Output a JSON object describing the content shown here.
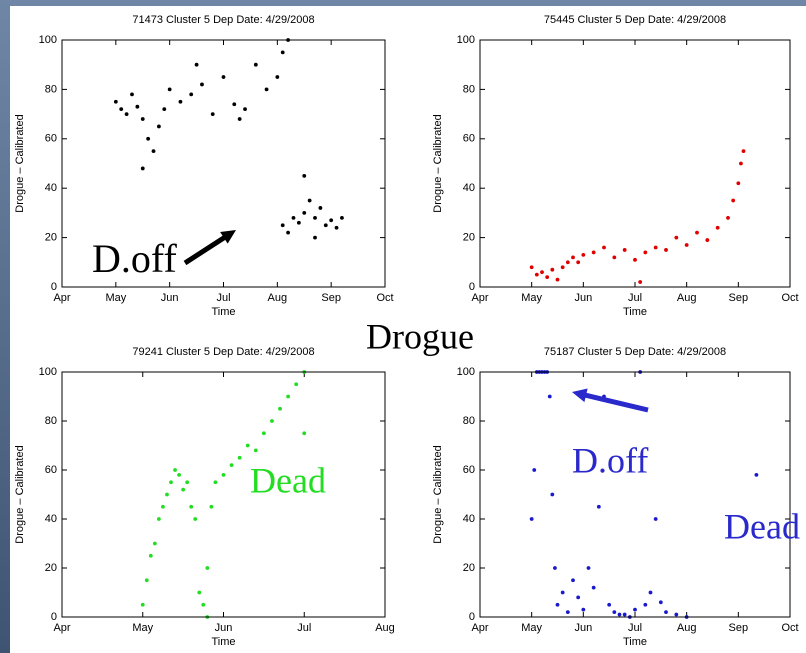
{
  "center_label": "Drogue",
  "chart_data": [
    {
      "type": "scatter",
      "title": "71473 Cluster 5 Dep Date: 4/29/2008",
      "xlabel": "Time",
      "ylabel": "Drogue – Calibrated",
      "color": "#000000",
      "annotations": [
        "D.off"
      ],
      "annotation_color": "#000000",
      "xlim": [
        4,
        10
      ],
      "xticks": [
        {
          "value": 4,
          "label": "Apr"
        },
        {
          "value": 5,
          "label": "May"
        },
        {
          "value": 6,
          "label": "Jun"
        },
        {
          "value": 7,
          "label": "Jul"
        },
        {
          "value": 8,
          "label": "Aug"
        },
        {
          "value": 9,
          "label": "Sep"
        },
        {
          "value": 10,
          "label": "Oct"
        }
      ],
      "ylim": [
        0,
        100
      ],
      "yticks": [
        0,
        20,
        40,
        60,
        80,
        100
      ],
      "x": [
        5.0,
        5.1,
        5.2,
        5.3,
        5.4,
        5.5,
        5.6,
        5.7,
        5.8,
        5.9,
        6.0,
        6.2,
        6.4,
        6.6,
        6.8,
        7.0,
        7.2,
        7.4,
        7.6,
        7.8,
        8.0,
        8.1,
        8.2,
        7.3,
        6.5,
        5.5,
        8.1,
        8.2,
        8.3,
        8.4,
        8.5,
        8.6,
        8.7,
        8.8,
        8.9,
        9.0,
        9.1,
        9.2,
        8.5,
        8.7
      ],
      "y": [
        75,
        72,
        70,
        78,
        73,
        68,
        60,
        55,
        65,
        72,
        80,
        75,
        78,
        82,
        70,
        85,
        74,
        72,
        90,
        80,
        85,
        95,
        100,
        68,
        90,
        48,
        25,
        22,
        28,
        26,
        30,
        35,
        28,
        32,
        25,
        27,
        24,
        28,
        45,
        20
      ]
    },
    {
      "type": "scatter",
      "title": "75445 Cluster 5 Dep Date: 4/29/2008",
      "xlabel": "Time",
      "ylabel": "Drogue – Calibrated",
      "color": "#e00000",
      "annotations": [],
      "annotation_color": "#000000",
      "xlim": [
        4,
        10
      ],
      "xticks": [
        {
          "value": 4,
          "label": "Apr"
        },
        {
          "value": 5,
          "label": "May"
        },
        {
          "value": 6,
          "label": "Jun"
        },
        {
          "value": 7,
          "label": "Jul"
        },
        {
          "value": 8,
          "label": "Aug"
        },
        {
          "value": 9,
          "label": "Sep"
        },
        {
          "value": 10,
          "label": "Oct"
        }
      ],
      "ylim": [
        0,
        100
      ],
      "yticks": [
        0,
        20,
        40,
        60,
        80,
        100
      ],
      "x": [
        5.0,
        5.1,
        5.2,
        5.3,
        5.4,
        5.5,
        5.6,
        5.7,
        5.8,
        5.9,
        6.0,
        6.2,
        6.4,
        6.6,
        6.8,
        7.0,
        7.1,
        7.2,
        7.4,
        7.6,
        7.8,
        8.0,
        8.2,
        8.4,
        8.6,
        8.8,
        8.9,
        9.0,
        9.05,
        9.1
      ],
      "y": [
        8,
        5,
        6,
        4,
        7,
        3,
        8,
        10,
        12,
        10,
        13,
        14,
        16,
        12,
        15,
        11,
        2,
        14,
        16,
        15,
        20,
        17,
        22,
        19,
        24,
        28,
        35,
        42,
        50,
        55
      ]
    },
    {
      "type": "scatter",
      "title": "79241 Cluster 5 Dep Date: 4/29/2008",
      "xlabel": "Time",
      "ylabel": "Drogue – Calibrated",
      "color": "#22dd22",
      "annotations": [
        "Dead"
      ],
      "annotation_color": "#22dd22",
      "xlim": [
        4,
        8
      ],
      "xticks": [
        {
          "value": 4,
          "label": "Apr"
        },
        {
          "value": 5,
          "label": "May"
        },
        {
          "value": 6,
          "label": "Jun"
        },
        {
          "value": 7,
          "label": "Jul"
        },
        {
          "value": 8,
          "label": "Aug"
        }
      ],
      "ylim": [
        0,
        100
      ],
      "yticks": [
        0,
        20,
        40,
        60,
        80,
        100
      ],
      "x": [
        5.0,
        5.05,
        5.1,
        5.15,
        5.2,
        5.25,
        5.3,
        5.35,
        5.4,
        5.45,
        5.5,
        5.55,
        5.6,
        5.65,
        5.7,
        5.75,
        5.8,
        5.85,
        5.9,
        6.0,
        6.1,
        6.2,
        6.3,
        6.4,
        6.5,
        6.6,
        6.7,
        6.8,
        6.9,
        7.0,
        5.8,
        7.0
      ],
      "y": [
        5,
        15,
        25,
        30,
        40,
        45,
        50,
        55,
        60,
        58,
        52,
        55,
        45,
        40,
        10,
        5,
        20,
        45,
        55,
        58,
        62,
        65,
        70,
        68,
        75,
        80,
        85,
        90,
        95,
        100,
        0,
        75
      ]
    },
    {
      "type": "scatter",
      "title": "75187 Cluster 5 Dep Date: 4/29/2008",
      "xlabel": "Time",
      "ylabel": "Drogue – Calibrated",
      "color": "#1a1acc",
      "annotations": [
        "D.off",
        "Dead"
      ],
      "annotation_color": "#2a2acc",
      "xlim": [
        4,
        10
      ],
      "xticks": [
        {
          "value": 4,
          "label": "Apr"
        },
        {
          "value": 5,
          "label": "May"
        },
        {
          "value": 6,
          "label": "Jun"
        },
        {
          "value": 7,
          "label": "Jul"
        },
        {
          "value": 8,
          "label": "Aug"
        },
        {
          "value": 9,
          "label": "Sep"
        },
        {
          "value": 10,
          "label": "Oct"
        }
      ],
      "ylim": [
        0,
        100
      ],
      "yticks": [
        0,
        20,
        40,
        60,
        80,
        100
      ],
      "x": [
        5.0,
        5.05,
        5.1,
        5.15,
        5.2,
        5.25,
        5.3,
        5.35,
        5.4,
        5.45,
        5.5,
        5.6,
        5.7,
        5.8,
        5.9,
        6.0,
        6.1,
        6.2,
        6.3,
        6.4,
        6.5,
        6.6,
        6.7,
        6.8,
        6.9,
        7.0,
        7.1,
        7.2,
        7.3,
        7.4,
        7.5,
        7.6,
        7.8,
        8.0,
        9.35
      ],
      "y": [
        40,
        60,
        100,
        100,
        100,
        100,
        100,
        90,
        50,
        20,
        5,
        10,
        2,
        15,
        8,
        3,
        20,
        12,
        45,
        90,
        5,
        2,
        1,
        1,
        0,
        3,
        100,
        5,
        10,
        40,
        6,
        2,
        1,
        0,
        58
      ]
    }
  ]
}
